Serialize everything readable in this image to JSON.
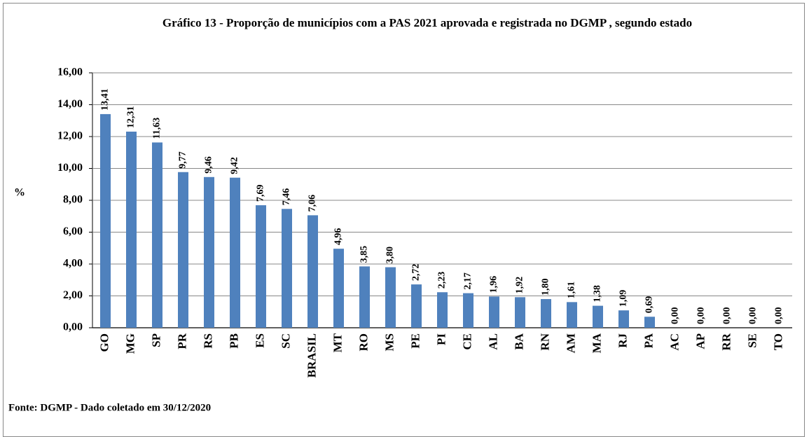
{
  "chart_data": {
    "type": "bar",
    "title": "Gráfico 13 - Proporção de municípios com a  PAS 2021 aprovada e registrada no DGMP , segundo estado",
    "y_label": "%",
    "source": "Fonte: DGMP - Dado coletado em 30/12/2020",
    "categories": [
      "GO",
      "MG",
      "SP",
      "PR",
      "RS",
      "PB",
      "ES",
      "SC",
      "BRASIL",
      "MT",
      "RO",
      "MS",
      "PE",
      "PI",
      "CE",
      "AL",
      "BA",
      "RN",
      "AM",
      "MA",
      "RJ",
      "PA",
      "AC",
      "AP",
      "RR",
      "SE",
      "TO"
    ],
    "values": [
      13.41,
      12.31,
      11.63,
      9.77,
      9.46,
      9.42,
      7.69,
      7.46,
      7.06,
      4.96,
      3.85,
      3.8,
      2.72,
      2.23,
      2.17,
      1.96,
      1.92,
      1.8,
      1.61,
      1.38,
      1.09,
      0.69,
      0,
      0,
      0,
      0,
      0
    ],
    "value_labels": [
      "13,41",
      "12,31",
      "11,63",
      "9,77",
      "9,46",
      "9,42",
      "7,69",
      "7,46",
      "7,06",
      "4,96",
      "3,85",
      "3,80",
      "2,72",
      "2,23",
      "2,17",
      "1,96",
      "1,92",
      "1,80",
      "1,61",
      "1,38",
      "1,09",
      "0,69",
      "0,00",
      "0,00",
      "0,00",
      "0,00",
      "0,00"
    ],
    "color": "#4f81bd",
    "ylim": [
      0,
      16
    ],
    "yticks": [
      {
        "value": 0,
        "label": "0,00"
      },
      {
        "value": 2,
        "label": "2,00"
      },
      {
        "value": 4,
        "label": "4,00"
      },
      {
        "value": 6,
        "label": "6,00"
      },
      {
        "value": 8,
        "label": "8,00"
      },
      {
        "value": 10,
        "label": "10,00"
      },
      {
        "value": 12,
        "label": "12,00"
      },
      {
        "value": 14,
        "label": "14,00"
      },
      {
        "value": 16,
        "label": "16,00"
      }
    ],
    "grid": true
  }
}
